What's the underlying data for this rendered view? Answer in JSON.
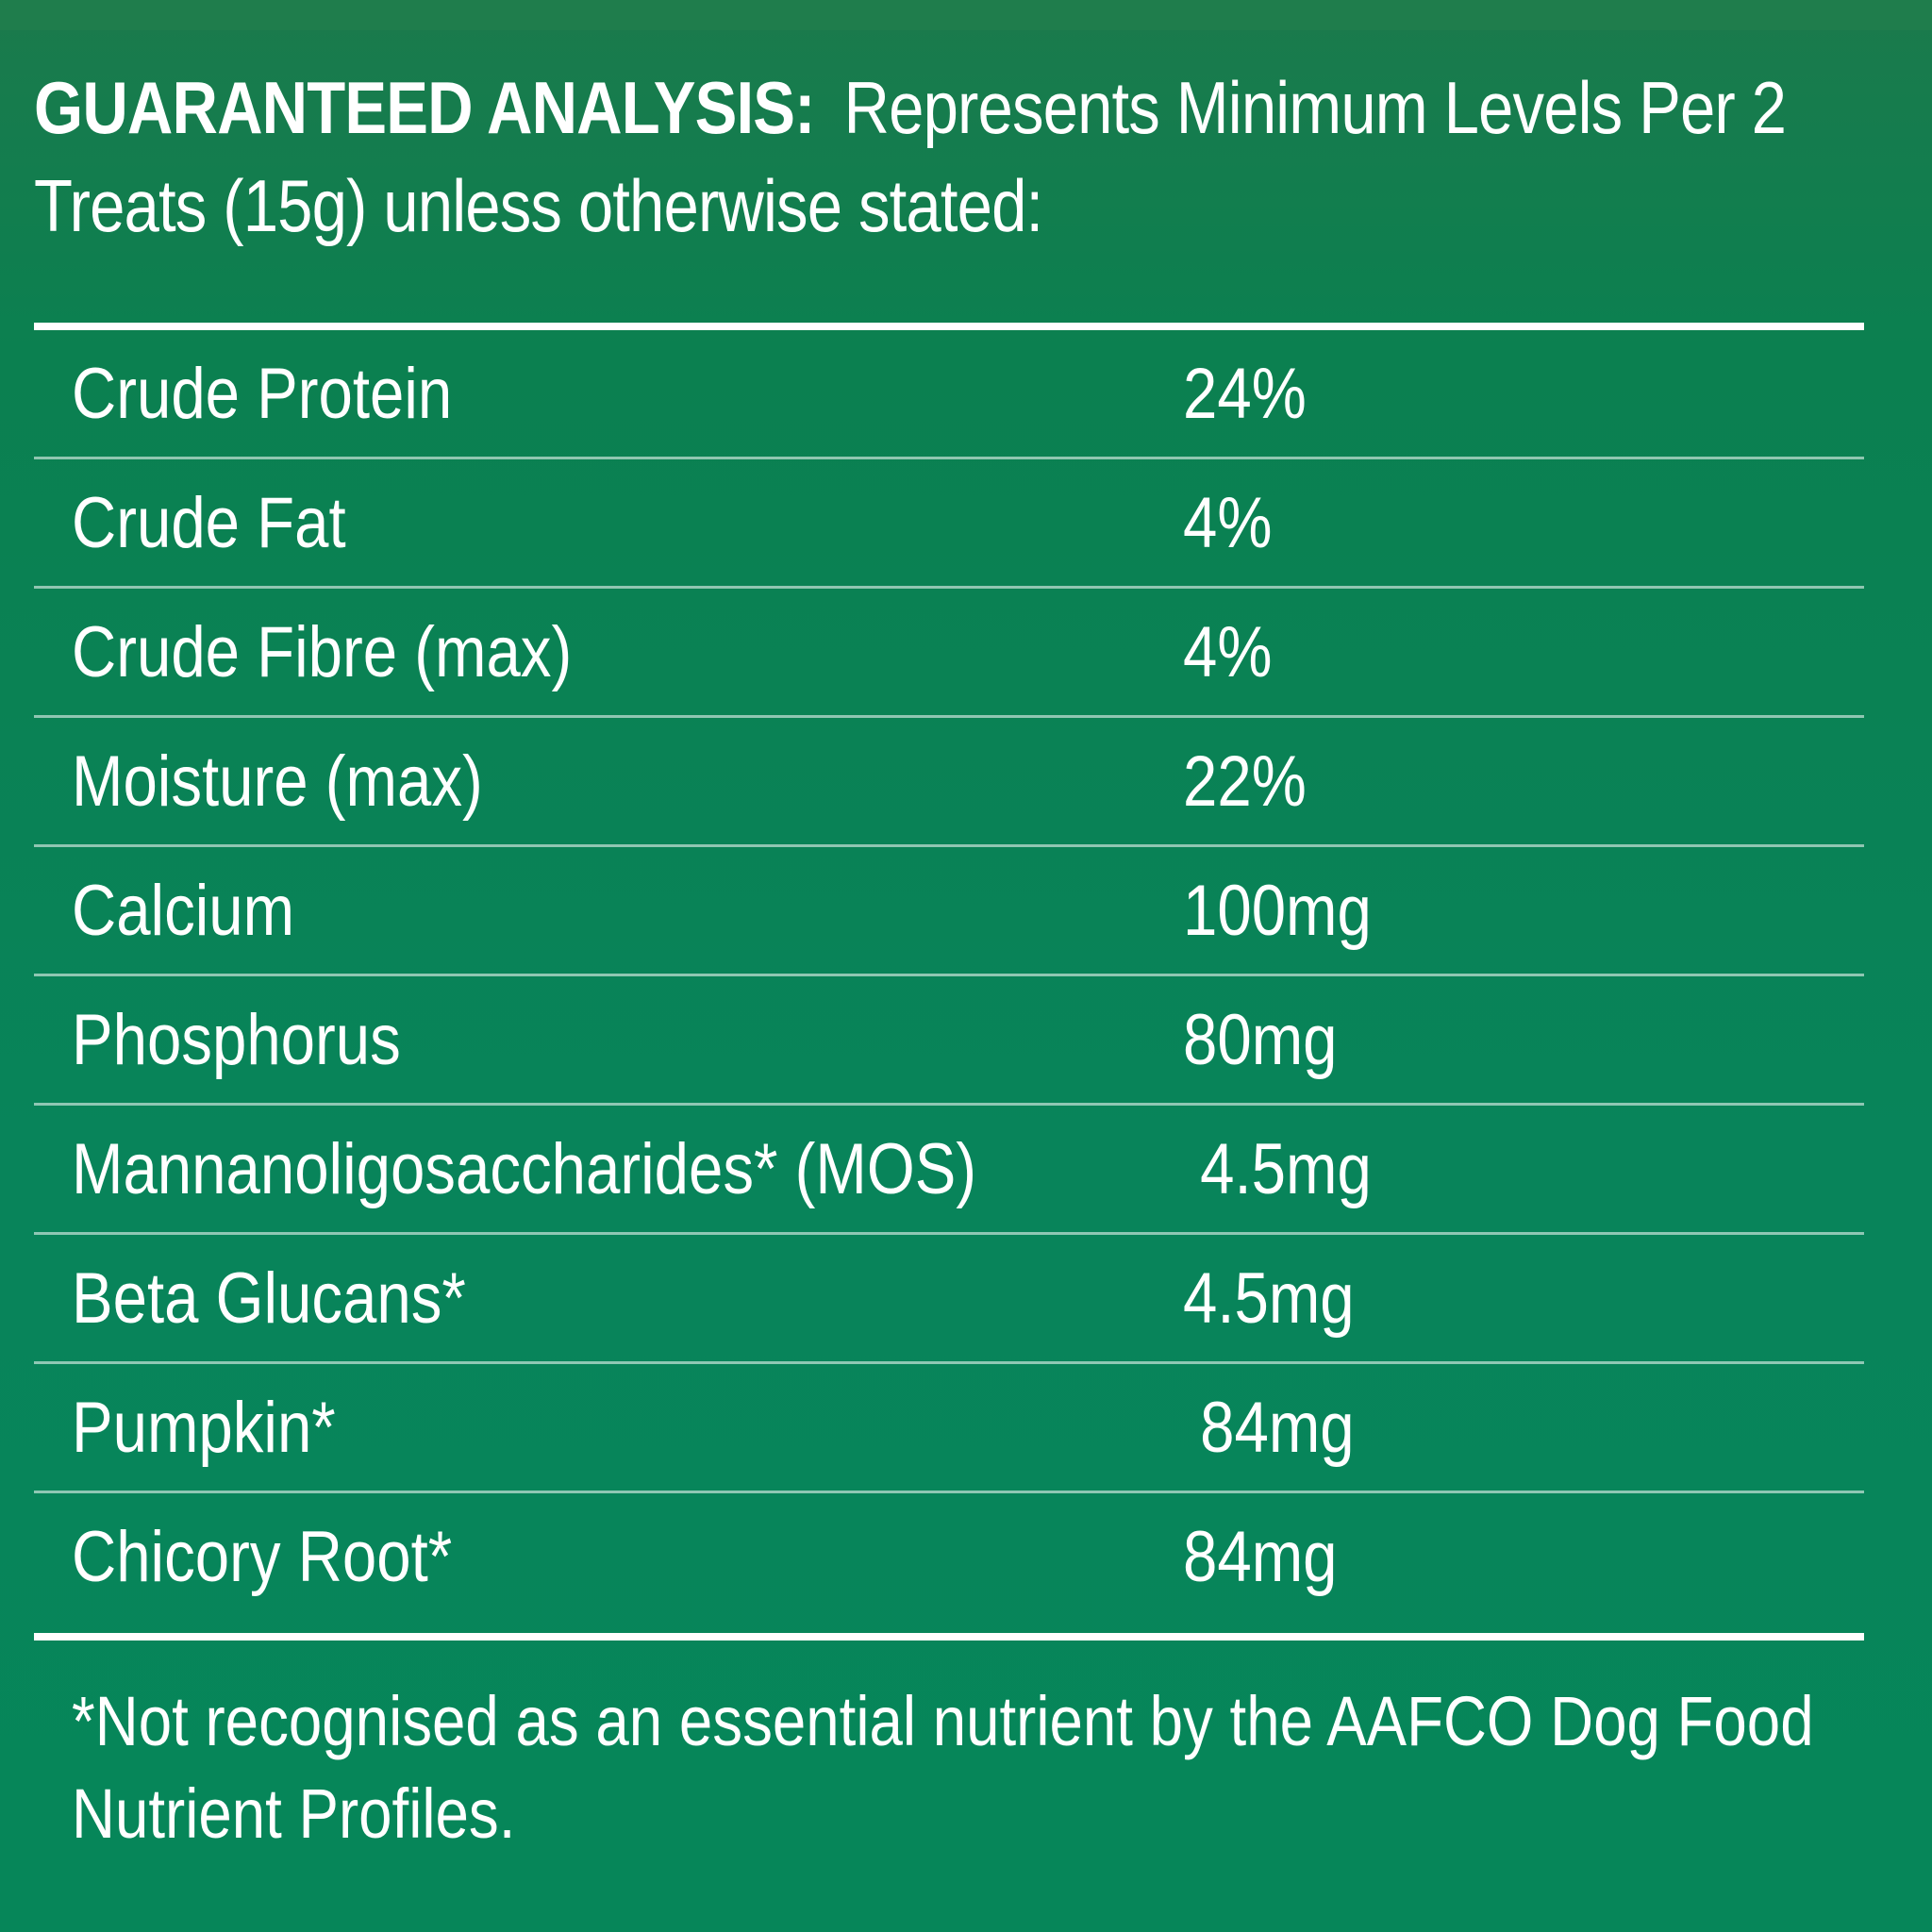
{
  "header": {
    "title": "GUARANTEED ANALYSIS:",
    "line1": "Represents Minimum Levels Per 2",
    "line2": "Treats (15g) unless otherwise stated:"
  },
  "analysis": {
    "rows": [
      {
        "nutrient": "Crude Protein",
        "value": "24%"
      },
      {
        "nutrient": "Crude Fat",
        "value": "4%"
      },
      {
        "nutrient": "Crude Fibre (max)",
        "value": "4%"
      },
      {
        "nutrient": "Moisture (max)",
        "value": "22%"
      },
      {
        "nutrient": "Calcium",
        "value": "100mg"
      },
      {
        "nutrient": "Phosphorus",
        "value": "80mg"
      },
      {
        "nutrient": "Mannanoligosaccharides* (MOS)",
        "value": " 4.5mg"
      },
      {
        "nutrient": "Beta Glucans*",
        "value": "4.5mg"
      },
      {
        "nutrient": "Pumpkin*",
        "value": " 84mg"
      },
      {
        "nutrient": "Chicory Root*",
        "value": "84mg"
      }
    ]
  },
  "footnote": {
    "line1": "*Not recognised as an essential nutrient by the AAFCO Dog Food",
    "line2": "Nutrient Profiles."
  }
}
